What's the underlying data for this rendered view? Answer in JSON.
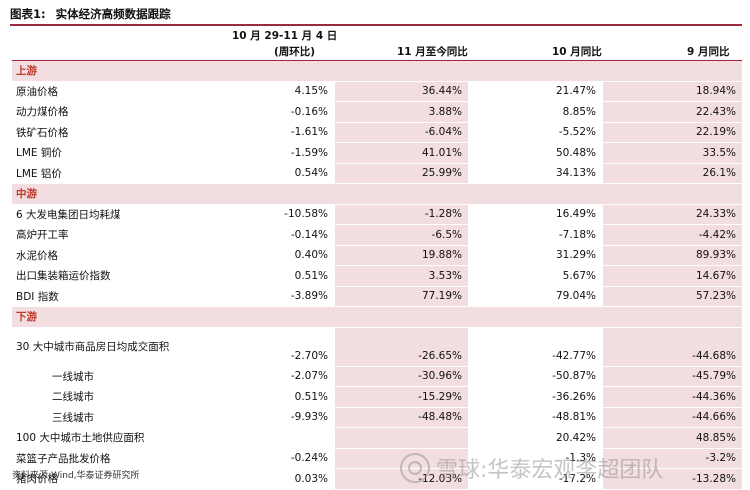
{
  "title": {
    "label": "图表1:",
    "text": "实体经济高频数据跟踪"
  },
  "columns": {
    "c1_line1": "10 月 29-11 月 4 日",
    "c1_line2": "(周环比)",
    "c2": "11 月至今同比",
    "c3": "10 月同比",
    "c4": "9 月同比"
  },
  "sections": [
    {
      "name": "上游",
      "rows": [
        {
          "name": "原油价格",
          "v": [
            "4.15%",
            "36.44%",
            "21.47%",
            "18.94%"
          ]
        },
        {
          "name": "动力煤价格",
          "v": [
            "-0.16%",
            "3.88%",
            "8.85%",
            "22.43%"
          ]
        },
        {
          "name": "铁矿石价格",
          "v": [
            "-1.61%",
            "-6.04%",
            "-5.52%",
            "22.19%"
          ]
        },
        {
          "name": "LME 铜价",
          "v": [
            "-1.59%",
            "41.01%",
            "50.48%",
            "33.5%"
          ]
        },
        {
          "name": "LME 铝价",
          "v": [
            "0.54%",
            "25.99%",
            "34.13%",
            "26.1%"
          ]
        }
      ]
    },
    {
      "name": "中游",
      "rows": [
        {
          "name": "6 大发电集团日均耗煤",
          "v": [
            "-10.58%",
            "-1.28%",
            "16.49%",
            "24.33%"
          ]
        },
        {
          "name": "高炉开工率",
          "v": [
            "-0.14%",
            "-6.5%",
            "-7.18%",
            "-4.42%"
          ]
        },
        {
          "name": "水泥价格",
          "v": [
            "0.40%",
            "19.88%",
            "31.29%",
            "89.93%"
          ]
        },
        {
          "name": "出口集装箱运价指数",
          "v": [
            "0.51%",
            "3.53%",
            "5.67%",
            "14.67%"
          ]
        },
        {
          "name": "BDI 指数",
          "v": [
            "-3.89%",
            "77.19%",
            "79.04%",
            "57.23%"
          ]
        }
      ]
    },
    {
      "name": "下游",
      "rows": [
        {
          "name": "30 大中城市商品房日均成交面积",
          "v": [
            "-2.70%",
            "-26.65%",
            "-42.77%",
            "-44.68%"
          ],
          "tall": true
        },
        {
          "name": "一线城市",
          "v": [
            "-2.07%",
            "-30.96%",
            "-50.87%",
            "-45.79%"
          ],
          "indent": true
        },
        {
          "name": "二线城市",
          "v": [
            "0.51%",
            "-15.29%",
            "-36.26%",
            "-44.36%"
          ],
          "indent": true
        },
        {
          "name": "三线城市",
          "v": [
            "-9.93%",
            "-48.48%",
            "-48.81%",
            "-44.66%"
          ],
          "indent": true
        },
        {
          "name": "100 大中城市土地供应面积",
          "v": [
            "",
            "",
            "20.42%",
            "48.85%"
          ]
        },
        {
          "name": "菜篮子产品批发价格",
          "v": [
            "-0.24%",
            "",
            "-1.3%",
            "-3.2%"
          ]
        },
        {
          "name": "猪肉价格",
          "v": [
            "0.03%",
            "-12.03%",
            "-17.2%",
            "-13.28%"
          ]
        }
      ]
    }
  ],
  "footer": "资料来源:Wind,华泰证券研究所",
  "watermark": "雪球:华泰宏观李超团队"
}
